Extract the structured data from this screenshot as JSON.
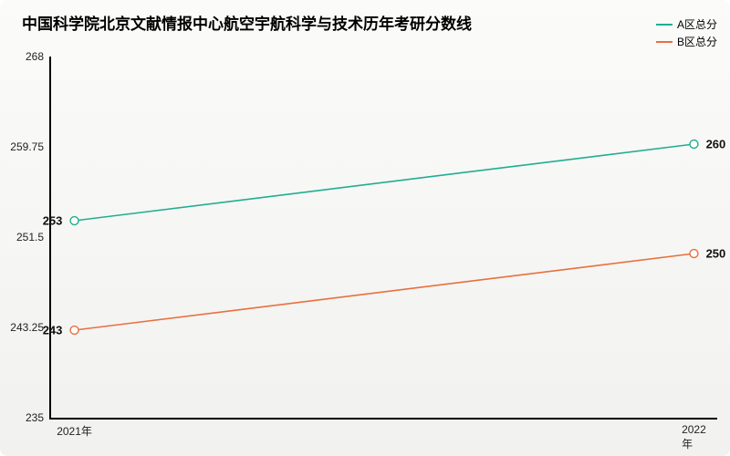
{
  "chart": {
    "type": "line",
    "title": "中国科学院北京文献情报中心航空宇航科学与技术历年考研分数线",
    "title_fontsize": 17,
    "title_fontweight": 700,
    "background_gradient": [
      "#fbfbf9",
      "#f1f1ef"
    ],
    "axis_color": "#000000",
    "axis_width": 2.5,
    "tick_fontsize": 12,
    "tick_color": "#222222",
    "label_fontsize": 13,
    "label_fontweight": 700,
    "label_color": "#111111",
    "ylim": [
      235,
      268
    ],
    "yticks": [
      235,
      243.25,
      251.5,
      259.75,
      268
    ],
    "ytick_labels": [
      "235",
      "243.25",
      "251.5",
      "259.75",
      "268"
    ],
    "x_categories": [
      "2021年",
      "2022年"
    ],
    "x_positions_pct": [
      3.5,
      96.5
    ],
    "legend": {
      "position": "top-right",
      "fontsize": 12
    },
    "series": [
      {
        "name": "A区总分",
        "color": "#1fae8f",
        "line_width": 1.6,
        "marker": "circle",
        "marker_fill": "#ffffff",
        "marker_size": 4.5,
        "values": [
          253,
          260
        ],
        "point_labels": [
          "253",
          "260"
        ]
      },
      {
        "name": "B区总分",
        "color": "#e86f3e",
        "line_width": 1.6,
        "marker": "circle",
        "marker_fill": "#ffffff",
        "marker_size": 4.5,
        "values": [
          243,
          250
        ],
        "point_labels": [
          "243",
          "250"
        ]
      }
    ]
  }
}
